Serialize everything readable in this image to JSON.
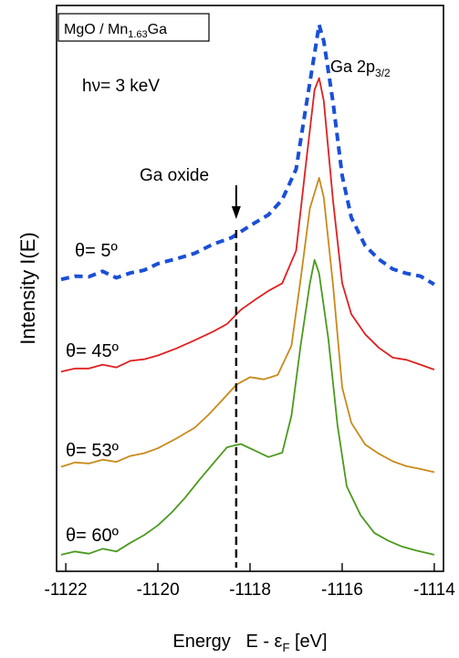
{
  "chart_data": {
    "type": "line",
    "sample_label": {
      "prefix": "MgO / Mn",
      "sub": "1.63",
      "suffix": "Ga"
    },
    "photon_energy": "hν= 3 keV",
    "peak_label": {
      "main": "Ga 2p",
      "sub": "3/2"
    },
    "annotation": {
      "text": "Ga oxide",
      "x": -1118.3
    },
    "xlabel": {
      "main": "Energy   E - ε",
      "sub": "F",
      "tail": " [eV]"
    },
    "ylabel": "Intensity  I(E)",
    "xlim": [
      -1122.2,
      -1113.8
    ],
    "ylim": [
      0,
      1
    ],
    "xticks": [
      -1122,
      -1120,
      -1118,
      -1116,
      -1114
    ],
    "xtick_labels": [
      "-1122",
      "-1120",
      "-1118",
      "-1116",
      "-1114"
    ],
    "series": [
      {
        "name": "θ= 5º",
        "color": "#1a4fd6",
        "dashed": true,
        "points": [
          [
            -1122.1,
            0.519
          ],
          [
            -1121.8,
            0.525
          ],
          [
            -1121.5,
            0.524
          ],
          [
            -1121.2,
            0.534
          ],
          [
            -1120.9,
            0.522
          ],
          [
            -1120.6,
            0.531
          ],
          [
            -1120.3,
            0.536
          ],
          [
            -1120.0,
            0.548
          ],
          [
            -1119.6,
            0.557
          ],
          [
            -1119.2,
            0.567
          ],
          [
            -1118.8,
            0.584
          ],
          [
            -1118.4,
            0.596
          ],
          [
            -1118.0,
            0.618
          ],
          [
            -1117.6,
            0.638
          ],
          [
            -1117.3,
            0.666
          ],
          [
            -1117.0,
            0.722
          ],
          [
            -1116.8,
            0.83
          ],
          [
            -1116.6,
            0.935
          ],
          [
            -1116.5,
            0.988
          ],
          [
            -1116.4,
            0.958
          ],
          [
            -1116.2,
            0.846
          ],
          [
            -1116.0,
            0.71
          ],
          [
            -1115.8,
            0.633
          ],
          [
            -1115.5,
            0.581
          ],
          [
            -1115.2,
            0.556
          ],
          [
            -1114.9,
            0.538
          ],
          [
            -1114.6,
            0.53
          ],
          [
            -1114.3,
            0.525
          ],
          [
            -1114.0,
            0.51
          ]
        ]
      },
      {
        "name": "θ= 45º",
        "color": "#e02020",
        "dashed": false,
        "points": [
          [
            -1122.1,
            0.349
          ],
          [
            -1121.8,
            0.355
          ],
          [
            -1121.5,
            0.355
          ],
          [
            -1121.2,
            0.362
          ],
          [
            -1120.9,
            0.357
          ],
          [
            -1120.6,
            0.369
          ],
          [
            -1120.3,
            0.372
          ],
          [
            -1120.0,
            0.379
          ],
          [
            -1119.6,
            0.392
          ],
          [
            -1119.2,
            0.407
          ],
          [
            -1118.8,
            0.423
          ],
          [
            -1118.5,
            0.437
          ],
          [
            -1118.2,
            0.463
          ],
          [
            -1117.9,
            0.481
          ],
          [
            -1117.6,
            0.498
          ],
          [
            -1117.3,
            0.512
          ],
          [
            -1117.0,
            0.572
          ],
          [
            -1116.8,
            0.722
          ],
          [
            -1116.6,
            0.868
          ],
          [
            -1116.5,
            0.89
          ],
          [
            -1116.4,
            0.848
          ],
          [
            -1116.2,
            0.665
          ],
          [
            -1116.0,
            0.512
          ],
          [
            -1115.8,
            0.455
          ],
          [
            -1115.5,
            0.418
          ],
          [
            -1115.2,
            0.393
          ],
          [
            -1114.9,
            0.375
          ],
          [
            -1114.6,
            0.371
          ],
          [
            -1114.3,
            0.362
          ],
          [
            -1114.0,
            0.353
          ]
        ]
      },
      {
        "name": "θ= 53º",
        "color": "#c98a1a",
        "dashed": false,
        "points": [
          [
            -1122.1,
            0.174
          ],
          [
            -1121.8,
            0.182
          ],
          [
            -1121.5,
            0.18
          ],
          [
            -1121.2,
            0.187
          ],
          [
            -1120.9,
            0.183
          ],
          [
            -1120.6,
            0.194
          ],
          [
            -1120.3,
            0.199
          ],
          [
            -1120.0,
            0.208
          ],
          [
            -1119.6,
            0.226
          ],
          [
            -1119.2,
            0.246
          ],
          [
            -1118.9,
            0.27
          ],
          [
            -1118.6,
            0.297
          ],
          [
            -1118.3,
            0.325
          ],
          [
            -1118.0,
            0.339
          ],
          [
            -1117.7,
            0.335
          ],
          [
            -1117.4,
            0.343
          ],
          [
            -1117.1,
            0.397
          ],
          [
            -1116.9,
            0.52
          ],
          [
            -1116.7,
            0.65
          ],
          [
            -1116.5,
            0.706
          ],
          [
            -1116.4,
            0.67
          ],
          [
            -1116.2,
            0.51
          ],
          [
            -1116.0,
            0.32
          ],
          [
            -1115.8,
            0.255
          ],
          [
            -1115.5,
            0.215
          ],
          [
            -1115.2,
            0.198
          ],
          [
            -1114.9,
            0.184
          ],
          [
            -1114.6,
            0.175
          ],
          [
            -1114.3,
            0.17
          ],
          [
            -1114.0,
            0.164
          ]
        ]
      },
      {
        "name": "θ= 60º",
        "color": "#4b9a1e",
        "dashed": false,
        "points": [
          [
            -1122.1,
            0.012
          ],
          [
            -1121.8,
            0.018
          ],
          [
            -1121.5,
            0.014
          ],
          [
            -1121.2,
            0.023
          ],
          [
            -1120.9,
            0.018
          ],
          [
            -1120.6,
            0.034
          ],
          [
            -1120.3,
            0.048
          ],
          [
            -1120.0,
            0.066
          ],
          [
            -1119.7,
            0.09
          ],
          [
            -1119.4,
            0.118
          ],
          [
            -1119.1,
            0.15
          ],
          [
            -1118.8,
            0.18
          ],
          [
            -1118.5,
            0.21
          ],
          [
            -1118.2,
            0.216
          ],
          [
            -1117.9,
            0.204
          ],
          [
            -1117.6,
            0.192
          ],
          [
            -1117.3,
            0.2
          ],
          [
            -1117.1,
            0.268
          ],
          [
            -1116.9,
            0.398
          ],
          [
            -1116.7,
            0.512
          ],
          [
            -1116.6,
            0.555
          ],
          [
            -1116.5,
            0.53
          ],
          [
            -1116.3,
            0.41
          ],
          [
            -1116.1,
            0.25
          ],
          [
            -1115.9,
            0.138
          ],
          [
            -1115.6,
            0.085
          ],
          [
            -1115.3,
            0.052
          ],
          [
            -1115.0,
            0.038
          ],
          [
            -1114.7,
            0.027
          ],
          [
            -1114.4,
            0.02
          ],
          [
            -1114.0,
            0.012
          ]
        ]
      }
    ],
    "series_label_parts": [
      {
        "prefix": "θ",
        "value": "= 5º"
      },
      {
        "prefix": "θ",
        "value": "= 45º"
      },
      {
        "prefix": "θ",
        "value": "= 53º"
      },
      {
        "prefix": "θ",
        "value": "= 60º"
      }
    ],
    "grid": false
  }
}
